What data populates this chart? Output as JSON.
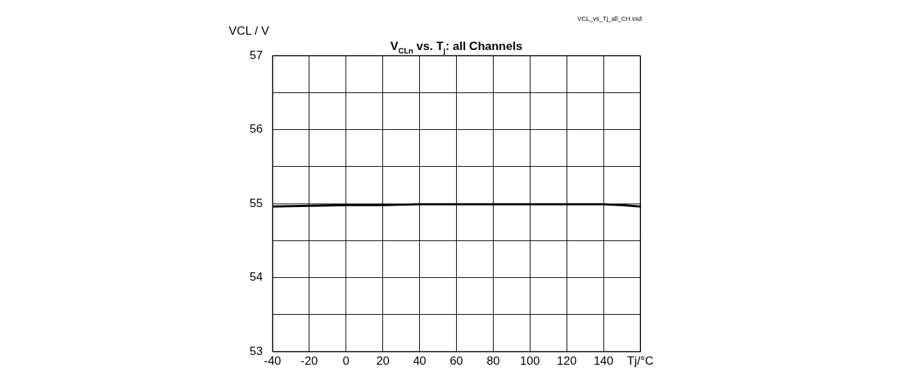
{
  "chart_data": {
    "type": "line",
    "title": "V$_{CLn}$ vs. T$_{j}$: all Channels",
    "ylabel": "VCL / V",
    "annotations": [
      "VCL_vs_Tj_all_CH.vsd"
    ],
    "x": [
      -40,
      -20,
      0,
      20,
      40,
      60,
      80,
      100,
      120,
      140,
      150,
      160
    ],
    "series": [
      {
        "color": "#000000",
        "values": [
          54.96,
          54.97,
          54.98,
          54.98,
          54.99,
          54.99,
          54.99,
          54.99,
          54.99,
          54.99,
          54.98,
          54.96
        ]
      }
    ],
    "xlim": [
      -40,
      160
    ],
    "xticks": [
      -40,
      -20,
      0,
      20,
      40,
      60,
      80,
      100,
      120,
      140,
      {
        "value": 160,
        "label": "Tj/°C"
      }
    ],
    "ylim": [
      53,
      57
    ],
    "yticks": [
      53,
      {
        "value": 53.5,
        "label": null
      },
      54,
      {
        "value": 54.5,
        "label": null
      },
      55,
      {
        "value": 55.5,
        "label": null
      },
      56,
      {
        "value": 56.5,
        "label": null
      },
      57
    ],
    "grid": true,
    "legend": false,
    "marker": "none",
    "line_style": "solid"
  }
}
